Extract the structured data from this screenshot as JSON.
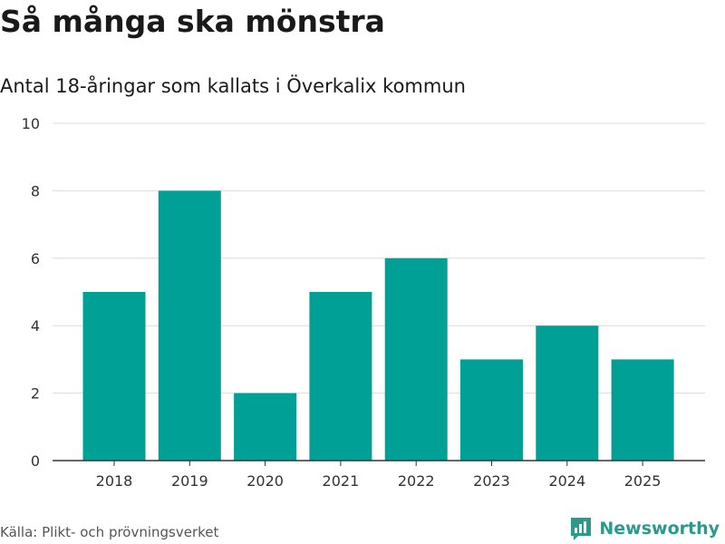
{
  "title": "Så många ska mönstra",
  "subtitle": "Antal 18-åringar som kallats i Överkalix kommun",
  "source": "Källa: Plikt- och prövningsverket",
  "brand": {
    "name": "Newsworthy",
    "icon": "bar-chart-logo-icon",
    "color": "#2a9a8d"
  },
  "chart_data": {
    "type": "bar",
    "title": "Så många ska mönstra",
    "subtitle": "Antal 18-åringar som kallats i Överkalix kommun",
    "categories": [
      "2018",
      "2019",
      "2020",
      "2021",
      "2022",
      "2023",
      "2024",
      "2025"
    ],
    "values": [
      5,
      8,
      2,
      5,
      6,
      3,
      4,
      3
    ],
    "ylim": [
      0,
      10
    ],
    "yticks": [
      0,
      2,
      4,
      6,
      8,
      10
    ],
    "xlabel": "",
    "ylabel": "",
    "grid": true,
    "bar_color": "#00a096",
    "grid_color": "#dcdcdc",
    "axis_color": "#333333"
  }
}
